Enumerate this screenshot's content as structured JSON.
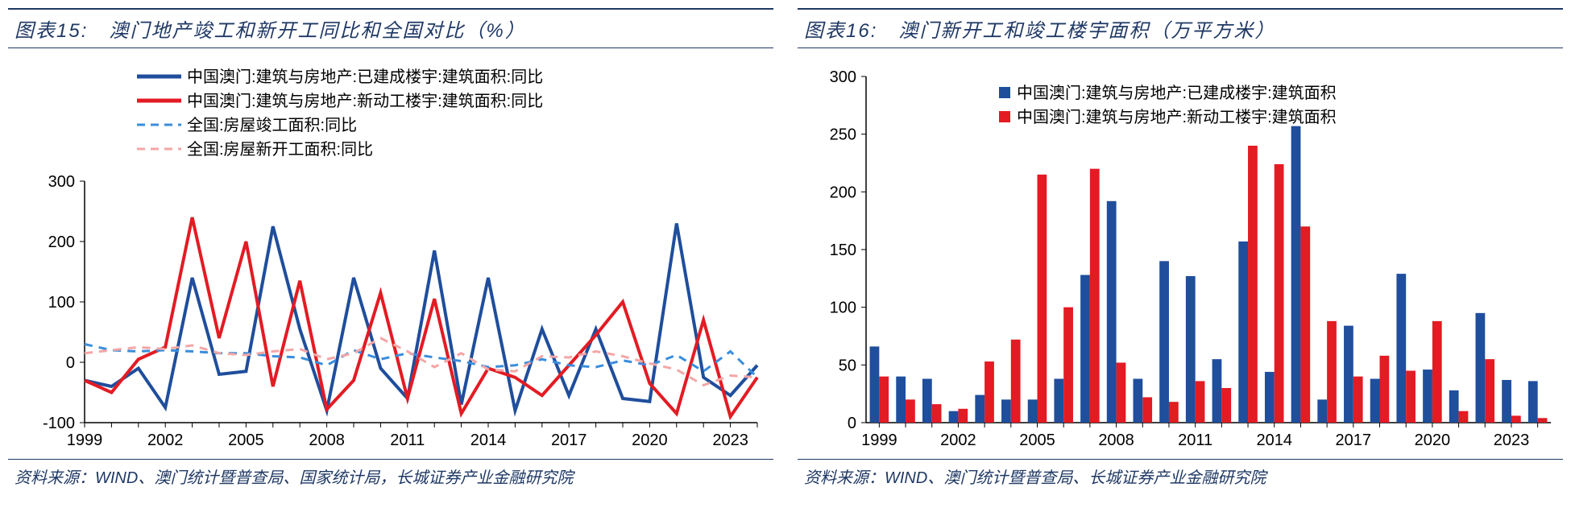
{
  "left": {
    "title_prefix": "图表",
    "title_num": "15",
    "title_sep": ":",
    "title_text": "澳门地产竣工和新开工同比和全国对比（%）",
    "source_label": "资料来源：",
    "source_text": "WIND、澳门统计暨普查局、国家统计局，长城证券产业金融研究院",
    "chart": {
      "type": "line",
      "background_color": "#ffffff",
      "ylim": [
        -100,
        300
      ],
      "ytick_step": 100,
      "x_categories": [
        1999,
        2000,
        2001,
        2002,
        2003,
        2004,
        2005,
        2006,
        2007,
        2008,
        2009,
        2010,
        2011,
        2012,
        2013,
        2014,
        2015,
        2016,
        2017,
        2018,
        2019,
        2020,
        2021,
        2022,
        2023,
        2024
      ],
      "x_tick_labels": [
        1999,
        2002,
        2005,
        2008,
        2011,
        2014,
        2017,
        2020,
        2023
      ],
      "x_tick_step": 3,
      "axis_color": "#000000",
      "line_width_solid": 4,
      "line_width_dashed": 3,
      "legend": {
        "position": "top-inside",
        "fontsize": 20,
        "items": [
          {
            "label": "中国澳门:建筑与房地产:已建成楼宇:建筑面积:同比",
            "color": "#1f4e9c",
            "dash": false
          },
          {
            "label": "中国澳门:建筑与房地产:新动工楼宇:建筑面积:同比",
            "color": "#e31b23",
            "dash": false
          },
          {
            "label": "全国:房屋竣工面积:同比",
            "color": "#3a8ddb",
            "dash": true
          },
          {
            "label": "全国:房屋新开工面积:同比",
            "color": "#f4a6a6",
            "dash": true
          }
        ]
      },
      "series": [
        {
          "name": "macau_completed_yoy",
          "color": "#1f4e9c",
          "dash": false,
          "values": [
            -30,
            -40,
            -10,
            -75,
            140,
            -20,
            -15,
            225,
            55,
            -80,
            140,
            -10,
            -60,
            185,
            -70,
            140,
            -80,
            55,
            -55,
            55,
            -60,
            -65,
            230,
            -25,
            -55,
            -5
          ]
        },
        {
          "name": "macau_newstart_yoy",
          "color": "#e31b23",
          "dash": false,
          "values": [
            -30,
            -50,
            5,
            25,
            240,
            40,
            200,
            -40,
            135,
            -78,
            -30,
            115,
            -60,
            105,
            -85,
            -10,
            -25,
            -55,
            -5,
            45,
            100,
            -35,
            -85,
            70,
            -90,
            -25
          ]
        },
        {
          "name": "national_completed_yoy",
          "color": "#3a8ddb",
          "dash": true,
          "values": [
            30,
            20,
            18,
            20,
            18,
            15,
            15,
            10,
            8,
            -5,
            20,
            5,
            15,
            8,
            2,
            -8,
            -5,
            5,
            -5,
            -8,
            3,
            -5,
            12,
            -15,
            18,
            -25
          ]
        },
        {
          "name": "national_newstart_yoy",
          "color": "#f4a6a6",
          "dash": true,
          "values": [
            15,
            20,
            25,
            22,
            28,
            15,
            12,
            18,
            22,
            5,
            15,
            40,
            18,
            -8,
            15,
            -12,
            -15,
            10,
            8,
            18,
            10,
            -2,
            -12,
            -38,
            -22,
            -25
          ]
        }
      ]
    }
  },
  "right": {
    "title_prefix": "图表",
    "title_num": "16",
    "title_sep": ":",
    "title_text": "澳门新开工和竣工楼宇面积（万平方米）",
    "source_label": "资料来源：",
    "source_text": "WIND、澳门统计暨普查局、长城证券产业金融研究院",
    "chart": {
      "type": "grouped-bar",
      "background_color": "#ffffff",
      "ylim": [
        0,
        300
      ],
      "ytick_step": 50,
      "x_categories": [
        1999,
        2000,
        2001,
        2002,
        2003,
        2004,
        2005,
        2006,
        2007,
        2008,
        2009,
        2010,
        2011,
        2012,
        2013,
        2014,
        2015,
        2016,
        2017,
        2018,
        2019,
        2020,
        2021,
        2022,
        2023,
        2024
      ],
      "x_tick_labels": [
        1999,
        2002,
        2005,
        2008,
        2011,
        2014,
        2017,
        2020,
        2023
      ],
      "x_tick_step": 3,
      "axis_color": "#000000",
      "bar_width": 0.36,
      "legend": {
        "position": "top-inside",
        "fontsize": 20,
        "items": [
          {
            "label": "中国澳门:建筑与房地产:已建成楼宇:建筑面积",
            "color": "#1f4e9c"
          },
          {
            "label": "中国澳门:建筑与房地产:新动工楼宇:建筑面积",
            "color": "#e31b23"
          }
        ]
      },
      "series": [
        {
          "name": "completed",
          "color": "#1f4e9c",
          "values": [
            66,
            40,
            38,
            10,
            24,
            20,
            20,
            38,
            128,
            192,
            38,
            140,
            127,
            55,
            157,
            44,
            257,
            20,
            84,
            38,
            129,
            46,
            28,
            95,
            37,
            36
          ]
        },
        {
          "name": "newstart",
          "color": "#e31b23",
          "values": [
            40,
            20,
            16,
            12,
            53,
            72,
            215,
            100,
            220,
            52,
            22,
            18,
            36,
            30,
            240,
            224,
            170,
            88,
            40,
            58,
            45,
            88,
            10,
            55,
            6,
            4
          ]
        }
      ]
    }
  }
}
